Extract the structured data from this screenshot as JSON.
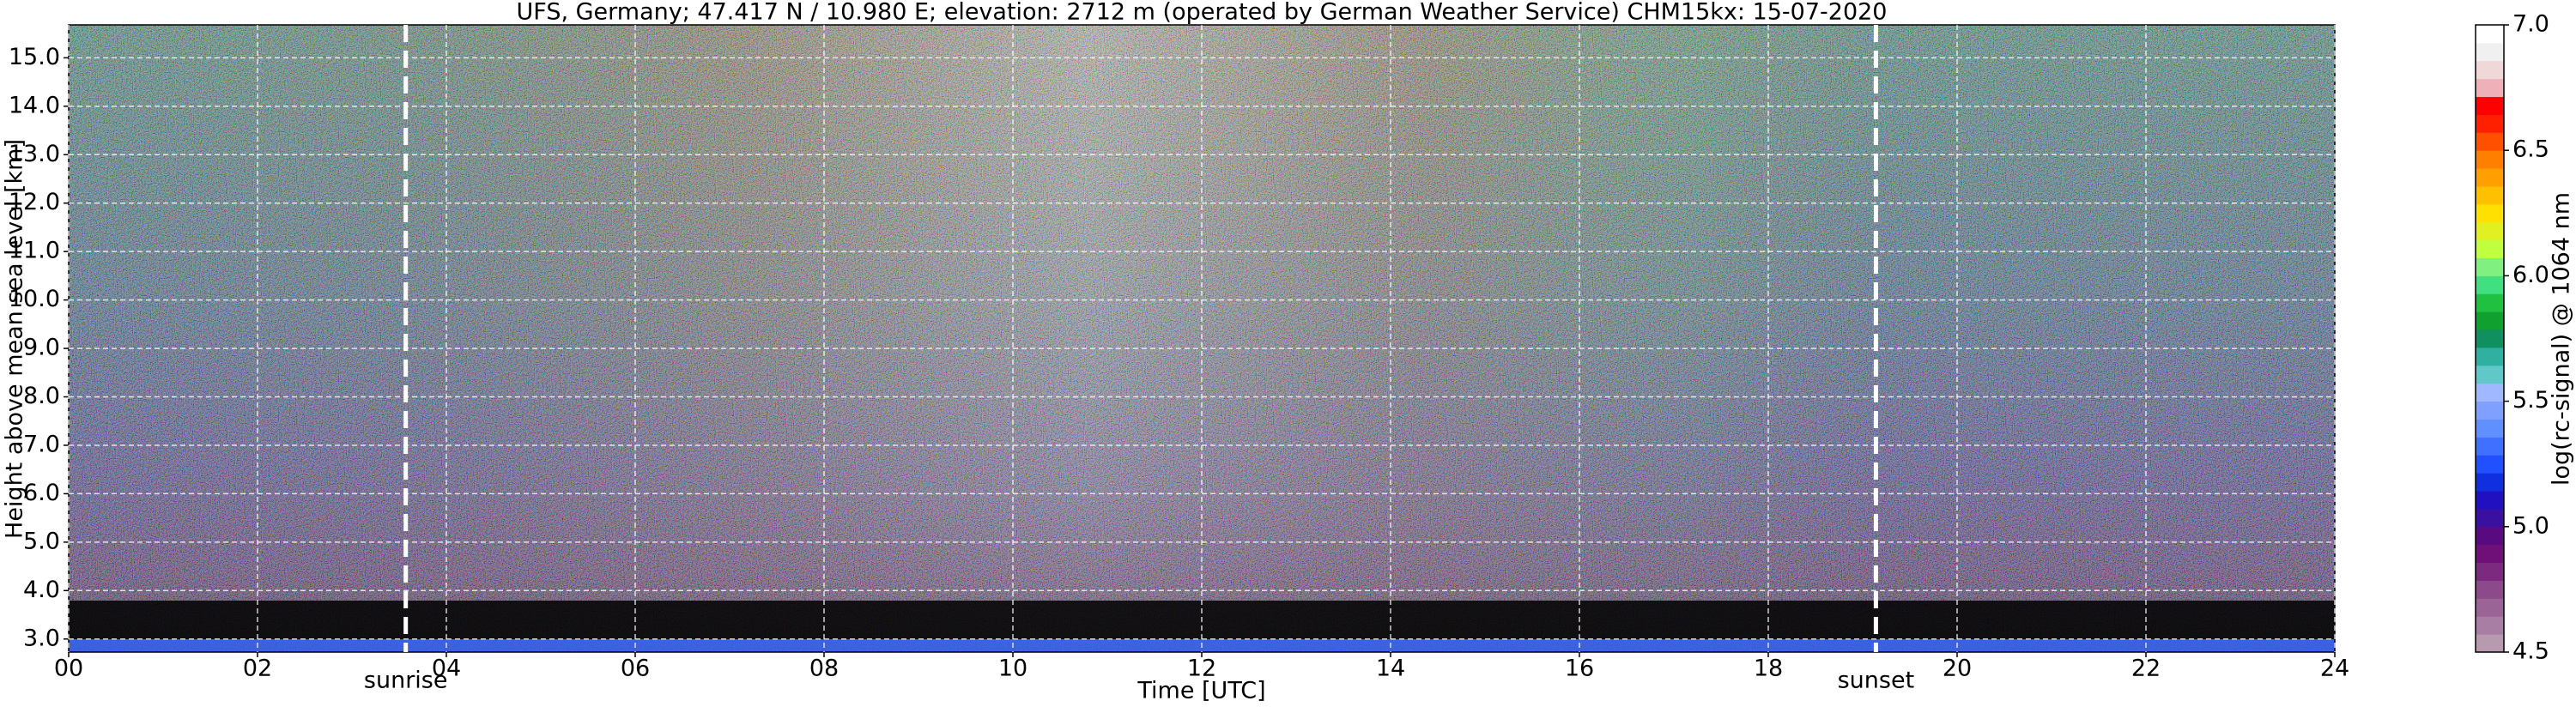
{
  "chart_data": {
    "type": "heatmap",
    "title": "UFS, Germany; 47.417 N / 10.980 E; elevation: 2712 m  (operated by German Weather Service)    CHM15kx: 15-07-2020",
    "x_label": "Time [UTC]",
    "y_label": "Height above mean sea level [km]",
    "xlim": [
      0,
      24
    ],
    "xticks": [
      {
        "value": 0,
        "label": "00"
      },
      {
        "value": 2,
        "label": "02"
      },
      {
        "value": 4,
        "label": "04"
      },
      {
        "value": 6,
        "label": "06"
      },
      {
        "value": 8,
        "label": "08"
      },
      10,
      12,
      14,
      16,
      18,
      20,
      22,
      24
    ],
    "ylim": [
      2.73,
      15.68
    ],
    "yticks": [
      {
        "value": 3,
        "label": "3.0"
      },
      {
        "value": 4,
        "label": "4.0"
      },
      {
        "value": 5,
        "label": "5.0"
      },
      {
        "value": 6,
        "label": "6.0"
      },
      {
        "value": 7,
        "label": "7.0"
      },
      {
        "value": 8,
        "label": "8.0"
      },
      {
        "value": 9,
        "label": "9.0"
      },
      {
        "value": 10,
        "label": "10.0"
      },
      {
        "value": 11,
        "label": "11.0"
      },
      {
        "value": 12,
        "label": "12.0"
      },
      {
        "value": 13,
        "label": "13.0"
      },
      {
        "value": 14,
        "label": "14.0"
      },
      {
        "value": 15,
        "label": "15.0"
      }
    ],
    "grid": true,
    "annotations": [
      {
        "label": "sunrise",
        "x": 3.57
      },
      {
        "label": "sunset",
        "x": 19.14
      }
    ],
    "colorbar": {
      "label": "log(rc-signal) @ 1064 nm",
      "lim": [
        4.5,
        7.0
      ],
      "ticks": [
        {
          "value": 4.5,
          "label": "4.5"
        },
        {
          "value": 5.0,
          "label": "5.0"
        },
        {
          "value": 5.5,
          "label": "5.5"
        },
        {
          "value": 6.0,
          "label": "6.0"
        },
        {
          "value": 6.5,
          "label": "6.5"
        },
        {
          "value": 7.0,
          "label": "7.0"
        }
      ],
      "colors": [
        "#b89aaf",
        "#a87ea4",
        "#9a6496",
        "#8c4a8a",
        "#7c2a7f",
        "#6e1077",
        "#5a0a80",
        "#3a10a0",
        "#2010c0",
        "#1030e0",
        "#2050ff",
        "#4070ff",
        "#6090ff",
        "#80a0ff",
        "#a0b8ff",
        "#60c8c8",
        "#30b0a0",
        "#109060",
        "#10a030",
        "#20c040",
        "#40e080",
        "#80f080",
        "#c0ff40",
        "#e0f020",
        "#ffe000",
        "#ffc000",
        "#ffa000",
        "#ff8000",
        "#ff5000",
        "#ff2000",
        "#ff0000",
        "#f0b0b8",
        "#f0d8d8",
        "#f0f0f0",
        "#ffffff"
      ]
    }
  }
}
